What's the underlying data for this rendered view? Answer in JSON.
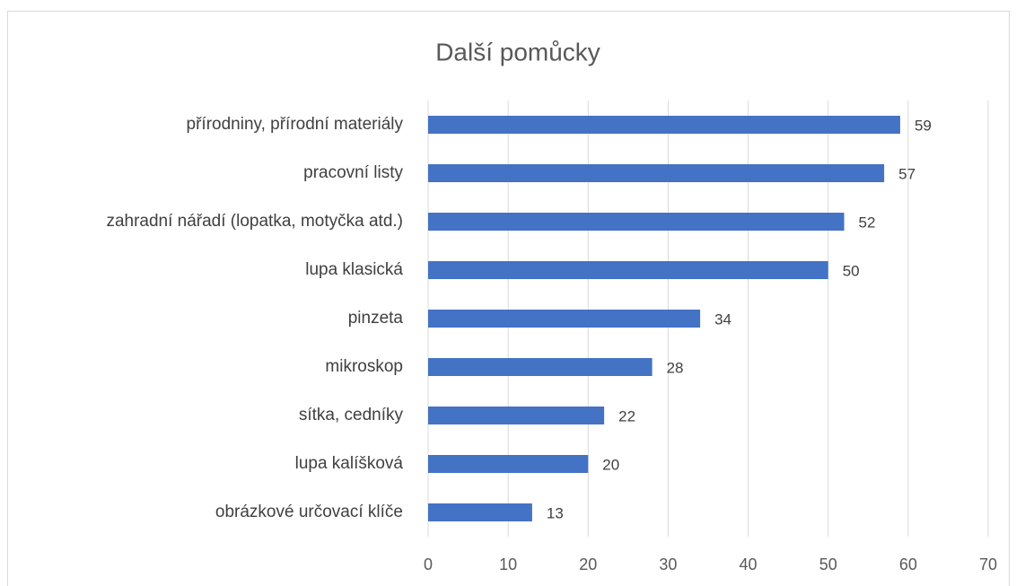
{
  "chart_data": {
    "type": "bar",
    "orientation": "horizontal",
    "title": "Další pomůcky",
    "categories": [
      "přírodniny, přírodní materiály",
      "pracovní listy",
      "zahradní nářadí (lopatka, motyčka atd.)",
      "lupa klasická",
      "pinzeta",
      "mikroskop",
      "sítka, cedníky",
      "lupa kalíšková",
      "obrázkové určovací klíče"
    ],
    "values": [
      59,
      57,
      52,
      50,
      34,
      28,
      22,
      20,
      13
    ],
    "color": "#4472c4",
    "xlim": [
      0,
      70
    ],
    "xticks": [
      0,
      10,
      20,
      30,
      40,
      50,
      60,
      70
    ],
    "grid": true
  }
}
